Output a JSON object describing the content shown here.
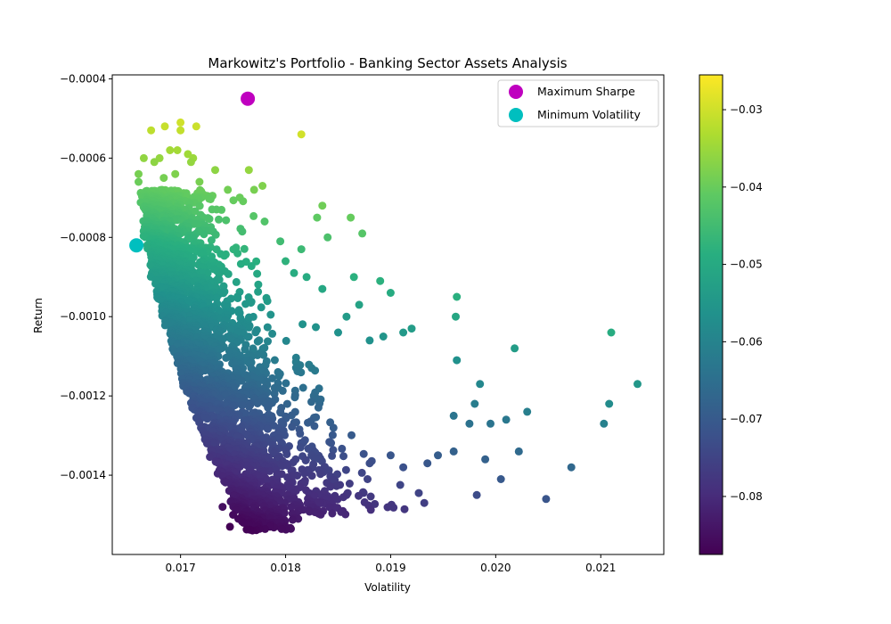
{
  "chart_data": {
    "type": "scatter",
    "title": "Markowitz's Portfolio - Banking Sector Assets Analysis",
    "xlabel": "Volatility",
    "ylabel": "Return",
    "xlim": [
      0.01635,
      0.0216
    ],
    "ylim": [
      -0.0016,
      -0.00039
    ],
    "xticks": [
      {
        "value": 0.017,
        "label": "0.017"
      },
      {
        "value": 0.018,
        "label": "0.018"
      },
      {
        "value": 0.019,
        "label": "0.019"
      },
      {
        "value": 0.02,
        "label": "0.020"
      },
      {
        "value": 0.021,
        "label": "0.021"
      }
    ],
    "yticks": [
      {
        "value": -0.0004,
        "label": "−0.0004"
      },
      {
        "value": -0.0006,
        "label": "−0.0006"
      },
      {
        "value": -0.0008,
        "label": "−0.0008"
      },
      {
        "value": -0.001,
        "label": "−0.0010"
      },
      {
        "value": -0.0012,
        "label": "−0.0012"
      },
      {
        "value": -0.0014,
        "label": "−0.0014"
      }
    ],
    "grid": false,
    "legend_position": "top-right",
    "colormap": "viridis",
    "colorbar": {
      "min": -0.0875,
      "max": -0.0255,
      "ticks": [
        {
          "value": -0.03,
          "label": "−0.03"
        },
        {
          "value": -0.04,
          "label": "−0.04"
        },
        {
          "value": -0.05,
          "label": "−0.05"
        },
        {
          "value": -0.06,
          "label": "−0.06"
        },
        {
          "value": -0.07,
          "label": "−0.07"
        },
        {
          "value": -0.08,
          "label": "−0.08"
        }
      ]
    },
    "highlights": [
      {
        "name": "Maximum Sharpe",
        "x": 0.01764,
        "y": -0.00045,
        "color": "#bf00bf"
      },
      {
        "name": "Minimum Volatility",
        "x": 0.01658,
        "y": -0.00082,
        "color": "#00bfbf"
      }
    ],
    "points": [
      [
        0.017,
        -0.00051
      ],
      [
        0.01715,
        -0.00052
      ],
      [
        0.01685,
        -0.00052
      ],
      [
        0.01672,
        -0.00053
      ],
      [
        0.017,
        -0.00053
      ],
      [
        0.01815,
        -0.00054
      ],
      [
        0.01665,
        -0.0006
      ],
      [
        0.0169,
        -0.00058
      ],
      [
        0.01697,
        -0.00058
      ],
      [
        0.01707,
        -0.00059
      ],
      [
        0.01712,
        -0.0006
      ],
      [
        0.01765,
        -0.00063
      ],
      [
        0.0166,
        -0.00064
      ],
      [
        0.01675,
        -0.00061
      ],
      [
        0.0168,
        -0.0006
      ],
      [
        0.0171,
        -0.00061
      ],
      [
        0.01733,
        -0.00063
      ],
      [
        0.01778,
        -0.00067
      ],
      [
        0.0166,
        -0.00066
      ],
      [
        0.01684,
        -0.00065
      ],
      [
        0.01695,
        -0.00064
      ],
      [
        0.01718,
        -0.00066
      ],
      [
        0.01745,
        -0.00068
      ],
      [
        0.0177,
        -0.00068
      ],
      [
        0.01835,
        -0.00072
      ],
      [
        0.0183,
        -0.00075
      ],
      [
        0.01862,
        -0.00075
      ],
      [
        0.0178,
        -0.00076
      ],
      [
        0.01873,
        -0.00079
      ],
      [
        0.0184,
        -0.0008
      ],
      [
        0.01815,
        -0.00083
      ],
      [
        0.01795,
        -0.00081
      ],
      [
        0.018,
        -0.00086
      ],
      [
        0.01808,
        -0.00089
      ],
      [
        0.0182,
        -0.0009
      ],
      [
        0.01835,
        -0.00093
      ],
      [
        0.01865,
        -0.0009
      ],
      [
        0.0189,
        -0.00091
      ],
      [
        0.019,
        -0.00094
      ],
      [
        0.01963,
        -0.00095
      ],
      [
        0.01962,
        -0.001
      ],
      [
        0.0192,
        -0.00103
      ],
      [
        0.01912,
        -0.00104
      ],
      [
        0.0187,
        -0.00097
      ],
      [
        0.01858,
        -0.001
      ],
      [
        0.0185,
        -0.00104
      ],
      [
        0.0188,
        -0.00106
      ],
      [
        0.01893,
        -0.00105
      ],
      [
        0.0211,
        -0.00104
      ],
      [
        0.02018,
        -0.00108
      ],
      [
        0.01963,
        -0.00111
      ],
      [
        0.01985,
        -0.00117
      ],
      [
        0.02135,
        -0.00117
      ],
      [
        0.0203,
        -0.00124
      ],
      [
        0.02108,
        -0.00122
      ],
      [
        0.0198,
        -0.00122
      ],
      [
        0.0196,
        -0.00125
      ],
      [
        0.01975,
        -0.00127
      ],
      [
        0.0201,
        -0.00126
      ],
      [
        0.02103,
        -0.00127
      ],
      [
        0.01995,
        -0.00127
      ],
      [
        0.02022,
        -0.00134
      ],
      [
        0.0199,
        -0.00136
      ],
      [
        0.02005,
        -0.00141
      ],
      [
        0.02072,
        -0.00138
      ],
      [
        0.01982,
        -0.00145
      ],
      [
        0.02048,
        -0.00146
      ],
      [
        0.0196,
        -0.00134
      ],
      [
        0.01945,
        -0.00135
      ],
      [
        0.01935,
        -0.00137
      ],
      [
        0.01932,
        -0.00147
      ],
      [
        0.01912,
        -0.00138
      ],
      [
        0.019,
        -0.00135
      ],
      [
        0.0188,
        -0.00137
      ],
      [
        0.01878,
        -0.00141
      ],
      [
        0.01858,
        -0.00145
      ],
      [
        0.01838,
        -0.00145
      ],
      [
        0.01812,
        -0.00151
      ],
      [
        0.018,
        -0.00153
      ],
      [
        0.01795,
        -0.00151
      ],
      [
        0.01785,
        -0.00153
      ],
      [
        0.01778,
        -0.00152
      ],
      [
        0.0177,
        -0.00151
      ],
      [
        0.0176,
        -0.00152
      ],
      [
        0.01755,
        -0.00151
      ],
      [
        0.0175,
        -0.0015
      ],
      [
        0.01747,
        -0.00153
      ],
      [
        0.0174,
        -0.00148
      ]
    ]
  }
}
